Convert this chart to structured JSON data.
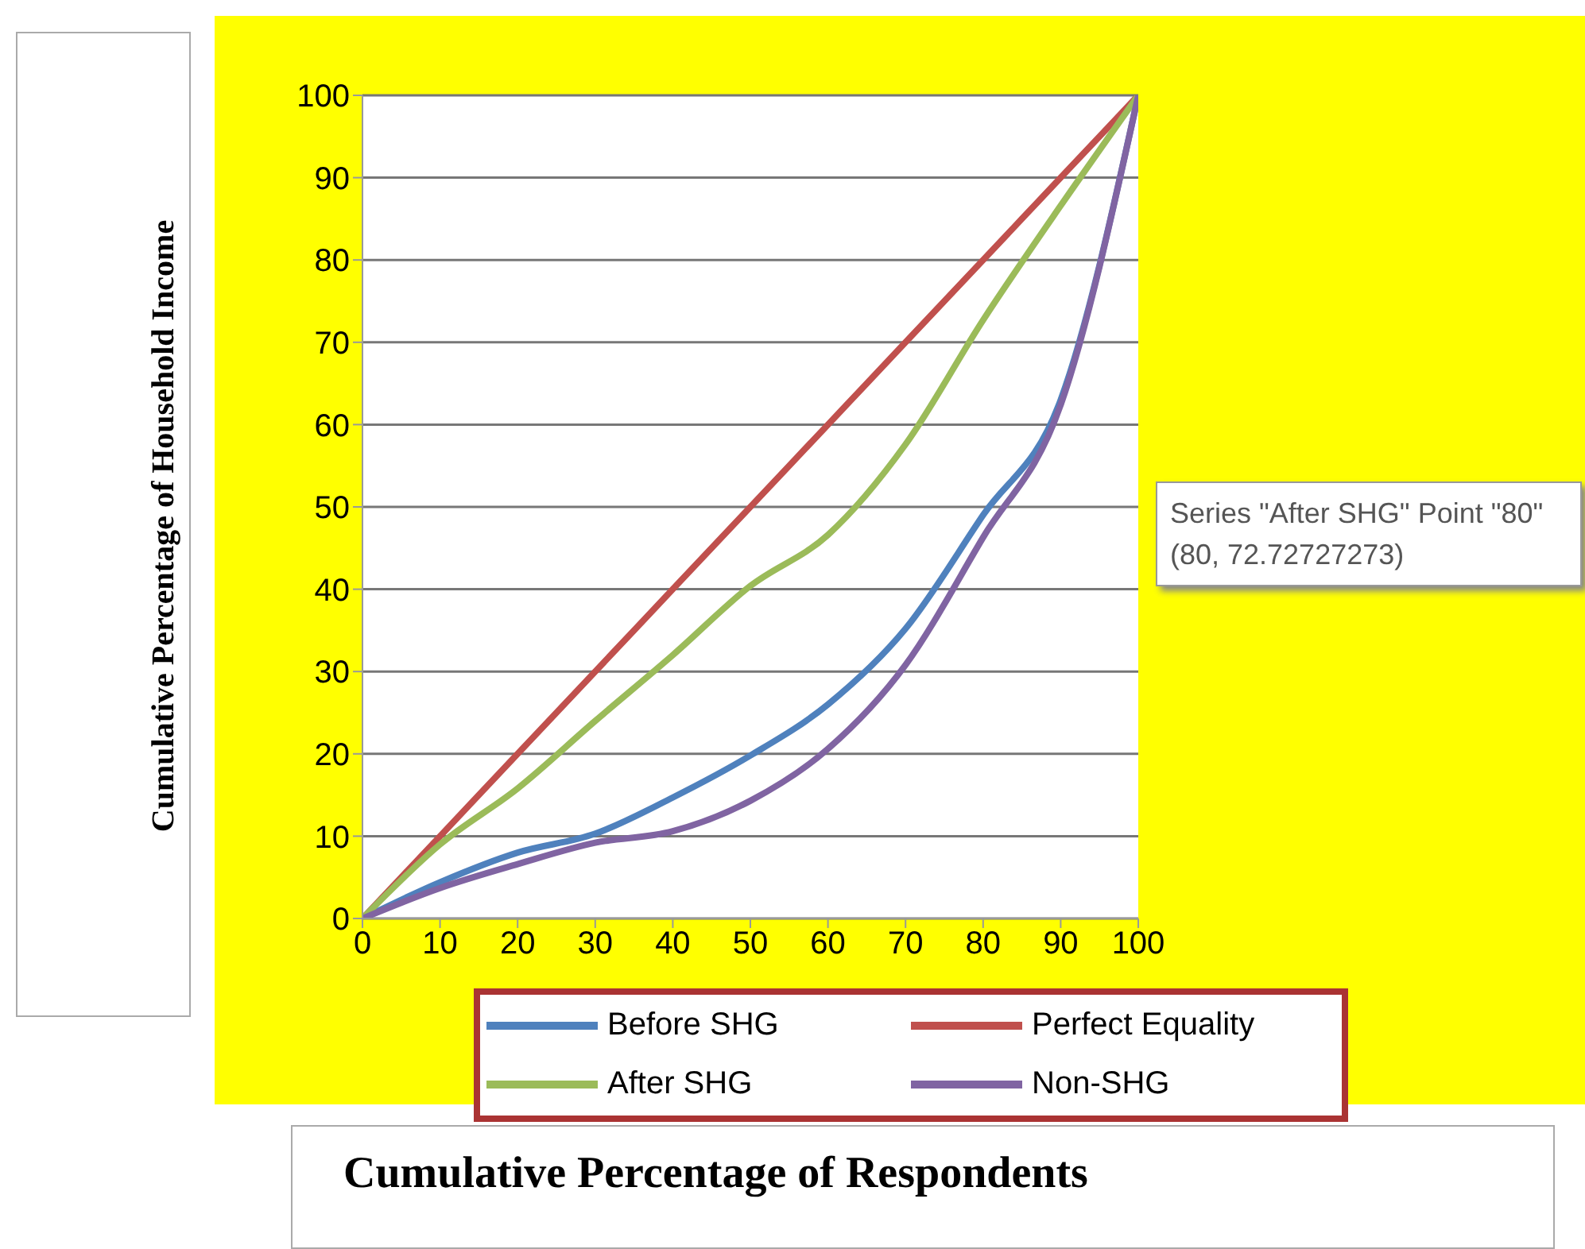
{
  "chart_data": {
    "type": "line",
    "xlabel": "Cumulative Percentage of Respondents",
    "ylabel": "Cumulative Percentage of Household Income",
    "x": [
      0,
      10,
      20,
      30,
      40,
      50,
      60,
      70,
      80,
      90,
      100
    ],
    "series": [
      {
        "name": "Before SHG",
        "color": "#4f81bd",
        "values": [
          0,
          4.4,
          8,
          10.3,
          14.7,
          19.8,
          26,
          35.2,
          49,
          63,
          100
        ]
      },
      {
        "name": "Perfect Equality",
        "color": "#c0504d",
        "values": [
          0,
          10,
          20,
          30,
          40,
          50,
          60,
          70,
          80,
          90,
          100
        ]
      },
      {
        "name": "After SHG",
        "color": "#9bbb59",
        "values": [
          0,
          9,
          15.8,
          24,
          32,
          40.4,
          46.6,
          57.6,
          72.7,
          86.6,
          100
        ]
      },
      {
        "name": "Non-SHG",
        "color": "#8064a2",
        "values": [
          0,
          3.7,
          6.6,
          9.2,
          10.6,
          14.3,
          20.6,
          30.8,
          46.3,
          62.4,
          100
        ]
      }
    ],
    "xlim": [
      0,
      100
    ],
    "xticks": [
      0,
      10,
      20,
      30,
      40,
      50,
      60,
      70,
      80,
      90,
      100
    ],
    "ylim": [
      0,
      100
    ],
    "yticks": [
      0,
      10,
      20,
      30,
      40,
      50,
      60,
      70,
      80,
      90,
      100
    ],
    "grid": "y",
    "legend": "bottom",
    "marker": "none",
    "line_style": "solid",
    "annotations": [
      "Series \"After SHG\" Point \"80\" (80, 72.72727273)"
    ]
  }
}
